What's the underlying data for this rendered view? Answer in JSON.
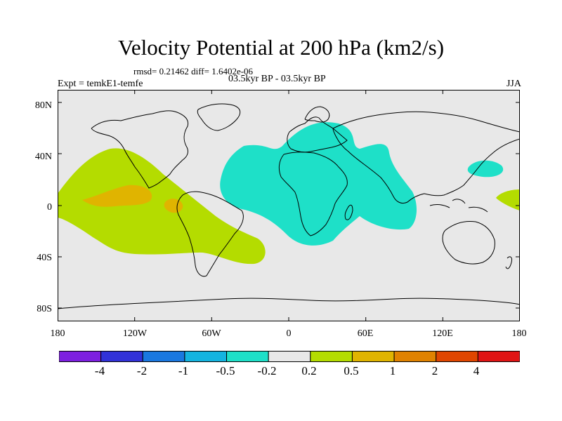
{
  "title": "Velocity Potential at 200 hPa (km2/s)",
  "stats": "rmsd= 0.21462 diff= 1.6402e-06",
  "experiment": "Expt = temkE1-temfe",
  "period": "03.5kyr BP - 03.5kyr BP",
  "season": "JJA",
  "map": {
    "projection": "cylindrical equidistant",
    "background_color": "#e8e8e8",
    "coastline_color": "#000000",
    "lon_range": [
      -180,
      180
    ],
    "lat_range": [
      -90,
      90
    ],
    "lat_ticks": [
      "80N",
      "40N",
      "0",
      "40S",
      "80S"
    ],
    "lon_ticks": [
      "180",
      "120W",
      "60W",
      "0",
      "60E",
      "120E",
      "180"
    ]
  },
  "colorbar": {
    "colors": [
      "#7d1fe0",
      "#3232d8",
      "#1a78e0",
      "#14b4e0",
      "#1ee0c8",
      "#e8e8e8",
      "#b4dc00",
      "#e0b400",
      "#e08200",
      "#e04600",
      "#e01414"
    ],
    "labels": [
      "-4",
      "-2",
      "-1",
      "-0.5",
      "-0.2",
      "0.2",
      "0.5",
      "1",
      "2",
      "4"
    ]
  },
  "regions": [
    {
      "name": "eastern-pacific-positive",
      "level": "0.2 to 0.5",
      "color": "#b4dc00"
    },
    {
      "name": "eastern-pacific-core",
      "level": "0.5 to 1",
      "color": "#e0b400"
    },
    {
      "name": "atlantic-africa-negative",
      "level": "-0.5 to -0.2",
      "color": "#1ee0c8"
    },
    {
      "name": "western-pacific-negative",
      "level": "-0.5 to -0.2",
      "color": "#1ee0c8"
    },
    {
      "name": "dateline-positive",
      "level": "0.2 to 0.5",
      "color": "#b4dc00"
    }
  ]
}
